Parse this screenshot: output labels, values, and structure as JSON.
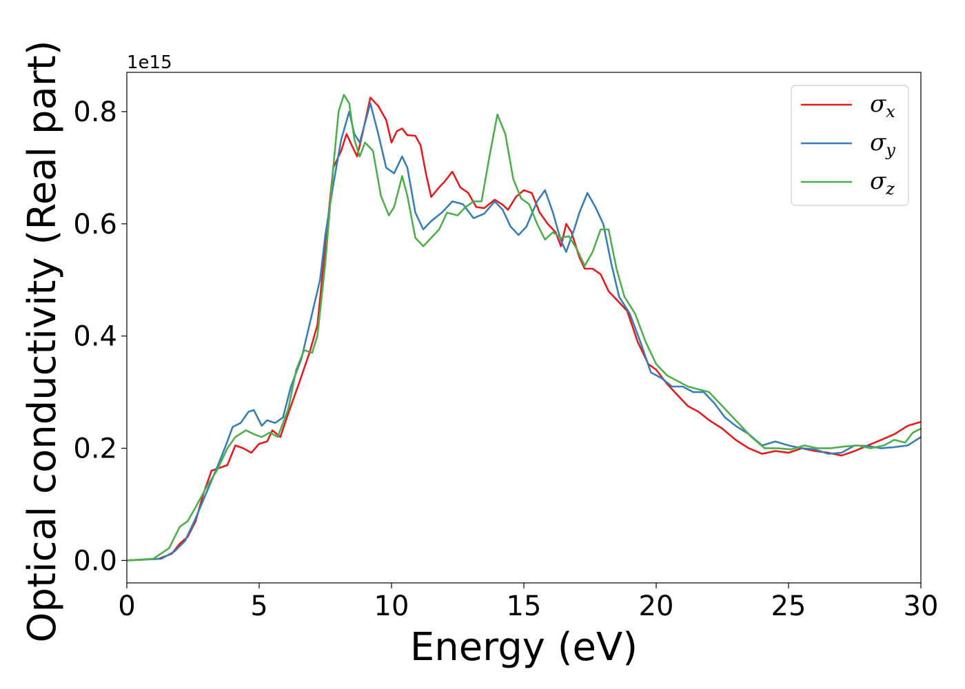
{
  "chart_data": {
    "type": "line",
    "xlabel": "Energy (eV)",
    "ylabel": "Optical conductivity (Real part)",
    "y_offset_label": "1e15",
    "xlim": [
      0,
      30
    ],
    "ylim": [
      -0.04,
      0.87
    ],
    "x_ticks": [
      0,
      5,
      10,
      15,
      20,
      25,
      30
    ],
    "x_tick_labels": [
      "0",
      "5",
      "10",
      "15",
      "20",
      "25",
      "30"
    ],
    "y_ticks": [
      0.0,
      0.2,
      0.4,
      0.6,
      0.8
    ],
    "y_tick_labels": [
      "0.0",
      "0.2",
      "0.4",
      "0.6",
      "0.8"
    ],
    "grid": false,
    "legend_position": "top-right",
    "series": [
      {
        "name": "σx",
        "symbol": "σ",
        "subscript": "x",
        "color": "#e41a1c",
        "points": [
          [
            0,
            0
          ],
          [
            1.2,
            0.003
          ],
          [
            1.7,
            0.012
          ],
          [
            2.0,
            0.03
          ],
          [
            2.3,
            0.042
          ],
          [
            2.6,
            0.07
          ],
          [
            2.9,
            0.12
          ],
          [
            3.2,
            0.16
          ],
          [
            3.5,
            0.165
          ],
          [
            3.8,
            0.17
          ],
          [
            4.1,
            0.205
          ],
          [
            4.4,
            0.2
          ],
          [
            4.7,
            0.192
          ],
          [
            5.0,
            0.208
          ],
          [
            5.3,
            0.212
          ],
          [
            5.5,
            0.232
          ],
          [
            5.8,
            0.22
          ],
          [
            6.1,
            0.262
          ],
          [
            6.5,
            0.315
          ],
          [
            6.9,
            0.37
          ],
          [
            7.2,
            0.42
          ],
          [
            7.5,
            0.56
          ],
          [
            7.8,
            0.7
          ],
          [
            8.1,
            0.73
          ],
          [
            8.3,
            0.76
          ],
          [
            8.5,
            0.74
          ],
          [
            8.7,
            0.72
          ],
          [
            8.9,
            0.76
          ],
          [
            9.2,
            0.825
          ],
          [
            9.5,
            0.81
          ],
          [
            9.8,
            0.785
          ],
          [
            10.0,
            0.745
          ],
          [
            10.2,
            0.765
          ],
          [
            10.4,
            0.77
          ],
          [
            10.6,
            0.758
          ],
          [
            10.9,
            0.757
          ],
          [
            11.1,
            0.74
          ],
          [
            11.3,
            0.69
          ],
          [
            11.5,
            0.648
          ],
          [
            11.8,
            0.665
          ],
          [
            12.0,
            0.675
          ],
          [
            12.3,
            0.693
          ],
          [
            12.6,
            0.665
          ],
          [
            12.9,
            0.655
          ],
          [
            13.2,
            0.63
          ],
          [
            13.5,
            0.628
          ],
          [
            13.9,
            0.643
          ],
          [
            14.2,
            0.634
          ],
          [
            14.4,
            0.625
          ],
          [
            14.7,
            0.648
          ],
          [
            15.0,
            0.66
          ],
          [
            15.3,
            0.655
          ],
          [
            15.6,
            0.62
          ],
          [
            15.9,
            0.6
          ],
          [
            16.2,
            0.585
          ],
          [
            16.4,
            0.56
          ],
          [
            16.6,
            0.6
          ],
          [
            16.8,
            0.585
          ],
          [
            17.1,
            0.54
          ],
          [
            17.3,
            0.52
          ],
          [
            17.6,
            0.52
          ],
          [
            17.9,
            0.51
          ],
          [
            18.2,
            0.48
          ],
          [
            18.5,
            0.465
          ],
          [
            18.9,
            0.445
          ],
          [
            19.3,
            0.39
          ],
          [
            19.7,
            0.35
          ],
          [
            20.0,
            0.34
          ],
          [
            20.4,
            0.315
          ],
          [
            20.8,
            0.295
          ],
          [
            21.2,
            0.275
          ],
          [
            21.6,
            0.265
          ],
          [
            22.0,
            0.25
          ],
          [
            22.5,
            0.235
          ],
          [
            23.0,
            0.215
          ],
          [
            23.5,
            0.2
          ],
          [
            24.0,
            0.19
          ],
          [
            24.5,
            0.195
          ],
          [
            25.0,
            0.192
          ],
          [
            25.5,
            0.2
          ],
          [
            26.0,
            0.195
          ],
          [
            26.5,
            0.192
          ],
          [
            27.0,
            0.187
          ],
          [
            27.5,
            0.195
          ],
          [
            28.0,
            0.205
          ],
          [
            28.5,
            0.215
          ],
          [
            29.0,
            0.225
          ],
          [
            29.5,
            0.24
          ],
          [
            30.0,
            0.247
          ]
        ]
      },
      {
        "name": "σy",
        "symbol": "σ",
        "subscript": "y",
        "color": "#377eb8",
        "points": [
          [
            0,
            0
          ],
          [
            1.3,
            0.003
          ],
          [
            1.8,
            0.016
          ],
          [
            2.2,
            0.035
          ],
          [
            2.6,
            0.075
          ],
          [
            3.0,
            0.12
          ],
          [
            3.4,
            0.165
          ],
          [
            3.7,
            0.2
          ],
          [
            4.0,
            0.238
          ],
          [
            4.3,
            0.245
          ],
          [
            4.6,
            0.265
          ],
          [
            4.8,
            0.268
          ],
          [
            5.1,
            0.24
          ],
          [
            5.3,
            0.25
          ],
          [
            5.6,
            0.245
          ],
          [
            5.9,
            0.255
          ],
          [
            6.2,
            0.31
          ],
          [
            6.6,
            0.36
          ],
          [
            7.0,
            0.44
          ],
          [
            7.3,
            0.5
          ],
          [
            7.5,
            0.58
          ],
          [
            7.8,
            0.67
          ],
          [
            8.1,
            0.75
          ],
          [
            8.4,
            0.8
          ],
          [
            8.6,
            0.76
          ],
          [
            8.8,
            0.745
          ],
          [
            9.0,
            0.78
          ],
          [
            9.2,
            0.815
          ],
          [
            9.5,
            0.76
          ],
          [
            9.8,
            0.7
          ],
          [
            10.1,
            0.69
          ],
          [
            10.4,
            0.72
          ],
          [
            10.6,
            0.7
          ],
          [
            10.9,
            0.62
          ],
          [
            11.2,
            0.59
          ],
          [
            11.5,
            0.605
          ],
          [
            11.9,
            0.62
          ],
          [
            12.3,
            0.64
          ],
          [
            12.7,
            0.635
          ],
          [
            13.1,
            0.61
          ],
          [
            13.5,
            0.618
          ],
          [
            13.9,
            0.64
          ],
          [
            14.2,
            0.625
          ],
          [
            14.5,
            0.595
          ],
          [
            14.8,
            0.58
          ],
          [
            15.1,
            0.595
          ],
          [
            15.5,
            0.64
          ],
          [
            15.8,
            0.66
          ],
          [
            16.1,
            0.62
          ],
          [
            16.4,
            0.57
          ],
          [
            16.6,
            0.55
          ],
          [
            16.9,
            0.59
          ],
          [
            17.1,
            0.62
          ],
          [
            17.4,
            0.655
          ],
          [
            17.7,
            0.63
          ],
          [
            18.0,
            0.6
          ],
          [
            18.3,
            0.53
          ],
          [
            18.6,
            0.47
          ],
          [
            19.0,
            0.44
          ],
          [
            19.4,
            0.39
          ],
          [
            19.8,
            0.335
          ],
          [
            20.2,
            0.325
          ],
          [
            20.6,
            0.31
          ],
          [
            21.0,
            0.31
          ],
          [
            21.4,
            0.3
          ],
          [
            21.8,
            0.3
          ],
          [
            22.2,
            0.28
          ],
          [
            22.6,
            0.255
          ],
          [
            23.0,
            0.24
          ],
          [
            23.5,
            0.225
          ],
          [
            24.0,
            0.205
          ],
          [
            24.5,
            0.212
          ],
          [
            25.0,
            0.205
          ],
          [
            25.5,
            0.2
          ],
          [
            26.0,
            0.198
          ],
          [
            26.5,
            0.19
          ],
          [
            27.0,
            0.192
          ],
          [
            27.5,
            0.205
          ],
          [
            28.0,
            0.204
          ],
          [
            28.5,
            0.2
          ],
          [
            29.0,
            0.202
          ],
          [
            29.5,
            0.205
          ],
          [
            30.0,
            0.22
          ]
        ]
      },
      {
        "name": "σz",
        "symbol": "σ",
        "subscript": "z",
        "color": "#4daf4a",
        "points": [
          [
            0,
            0
          ],
          [
            1.0,
            0.003
          ],
          [
            1.6,
            0.022
          ],
          [
            2.0,
            0.06
          ],
          [
            2.3,
            0.07
          ],
          [
            2.6,
            0.095
          ],
          [
            3.0,
            0.13
          ],
          [
            3.4,
            0.16
          ],
          [
            3.8,
            0.2
          ],
          [
            4.1,
            0.22
          ],
          [
            4.5,
            0.232
          ],
          [
            4.8,
            0.225
          ],
          [
            5.1,
            0.22
          ],
          [
            5.4,
            0.228
          ],
          [
            5.7,
            0.22
          ],
          [
            6.1,
            0.27
          ],
          [
            6.4,
            0.34
          ],
          [
            6.7,
            0.375
          ],
          [
            7.0,
            0.37
          ],
          [
            7.2,
            0.4
          ],
          [
            7.5,
            0.53
          ],
          [
            7.8,
            0.7
          ],
          [
            8.0,
            0.8
          ],
          [
            8.2,
            0.83
          ],
          [
            8.4,
            0.815
          ],
          [
            8.6,
            0.75
          ],
          [
            8.8,
            0.72
          ],
          [
            9.0,
            0.745
          ],
          [
            9.3,
            0.73
          ],
          [
            9.6,
            0.65
          ],
          [
            9.9,
            0.615
          ],
          [
            10.1,
            0.63
          ],
          [
            10.4,
            0.685
          ],
          [
            10.6,
            0.65
          ],
          [
            10.9,
            0.575
          ],
          [
            11.2,
            0.56
          ],
          [
            11.5,
            0.575
          ],
          [
            11.8,
            0.59
          ],
          [
            12.1,
            0.62
          ],
          [
            12.5,
            0.615
          ],
          [
            12.8,
            0.63
          ],
          [
            13.1,
            0.64
          ],
          [
            13.4,
            0.64
          ],
          [
            13.7,
            0.72
          ],
          [
            14.0,
            0.795
          ],
          [
            14.3,
            0.76
          ],
          [
            14.6,
            0.68
          ],
          [
            14.9,
            0.645
          ],
          [
            15.2,
            0.635
          ],
          [
            15.5,
            0.6
          ],
          [
            15.8,
            0.572
          ],
          [
            16.1,
            0.585
          ],
          [
            16.4,
            0.575
          ],
          [
            16.7,
            0.578
          ],
          [
            17.0,
            0.555
          ],
          [
            17.3,
            0.525
          ],
          [
            17.6,
            0.55
          ],
          [
            17.9,
            0.59
          ],
          [
            18.2,
            0.59
          ],
          [
            18.5,
            0.52
          ],
          [
            18.8,
            0.47
          ],
          [
            19.2,
            0.44
          ],
          [
            19.6,
            0.39
          ],
          [
            20.0,
            0.35
          ],
          [
            20.4,
            0.33
          ],
          [
            20.8,
            0.32
          ],
          [
            21.2,
            0.31
          ],
          [
            21.6,
            0.305
          ],
          [
            22.0,
            0.3
          ],
          [
            22.4,
            0.28
          ],
          [
            22.8,
            0.26
          ],
          [
            23.2,
            0.24
          ],
          [
            23.6,
            0.22
          ],
          [
            24.1,
            0.2
          ],
          [
            24.6,
            0.2
          ],
          [
            25.1,
            0.198
          ],
          [
            25.6,
            0.205
          ],
          [
            26.1,
            0.2
          ],
          [
            26.6,
            0.2
          ],
          [
            27.1,
            0.203
          ],
          [
            27.6,
            0.205
          ],
          [
            28.1,
            0.2
          ],
          [
            28.6,
            0.205
          ],
          [
            29.0,
            0.215
          ],
          [
            29.4,
            0.21
          ],
          [
            29.7,
            0.228
          ],
          [
            30.0,
            0.235
          ]
        ]
      }
    ]
  }
}
